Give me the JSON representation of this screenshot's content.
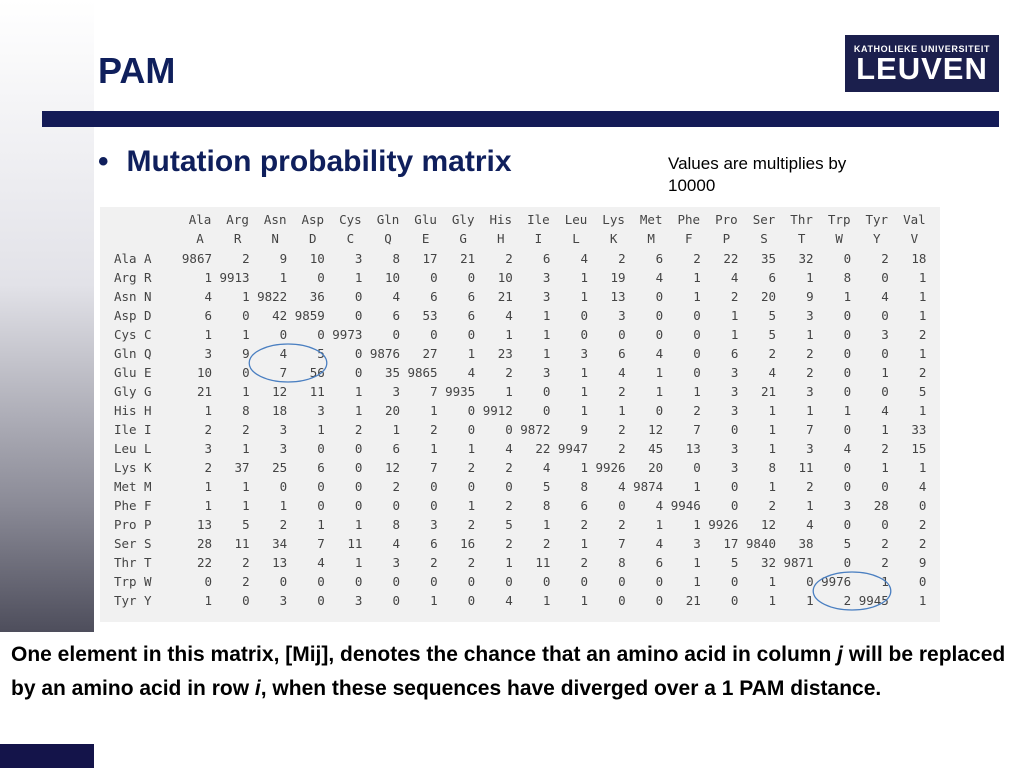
{
  "slide": {
    "title": "PAM",
    "logo_top": "KATHOLIEKE UNIVERSITEIT",
    "logo_main": "LEUVEN",
    "bullet": "Mutation probability matrix",
    "note": "Values are multiplies by 10000",
    "caption": {
      "part1": "One element in this matrix, [Mij], denotes the chance that an amino acid in column ",
      "j": "j",
      "part2": " will be replaced by an amino acid in row ",
      "i": "i",
      "part3": ", when these sequences have diverged over a 1 PAM distance."
    }
  },
  "matrix": {
    "col_names": [
      "Ala",
      "Arg",
      "Asn",
      "Asp",
      "Cys",
      "Gln",
      "Glu",
      "Gly",
      "His",
      "Ile",
      "Leu",
      "Lys",
      "Met",
      "Phe",
      "Pro",
      "Ser",
      "Thr",
      "Trp",
      "Tyr",
      "Val"
    ],
    "col_letters": [
      "A",
      "R",
      "N",
      "D",
      "C",
      "Q",
      "E",
      "G",
      "H",
      "I",
      "L",
      "K",
      "M",
      "F",
      "P",
      "S",
      "T",
      "W",
      "Y",
      "V"
    ],
    "row_names": [
      "Ala",
      "Arg",
      "Asn",
      "Asp",
      "Cys",
      "Gln",
      "Glu",
      "Gly",
      "His",
      "Ile",
      "Leu",
      "Lys",
      "Met",
      "Phe",
      "Pro",
      "Ser",
      "Thr",
      "Trp",
      "Tyr"
    ],
    "row_letters": [
      "A",
      "R",
      "N",
      "D",
      "C",
      "Q",
      "E",
      "G",
      "H",
      "I",
      "L",
      "K",
      "M",
      "F",
      "P",
      "S",
      "T",
      "W",
      "Y"
    ],
    "rows": [
      [
        9867,
        2,
        9,
        10,
        3,
        8,
        17,
        21,
        2,
        6,
        4,
        2,
        6,
        2,
        22,
        35,
        32,
        0,
        2,
        18
      ],
      [
        1,
        9913,
        1,
        0,
        1,
        10,
        0,
        0,
        10,
        3,
        1,
        19,
        4,
        1,
        4,
        6,
        1,
        8,
        0,
        1
      ],
      [
        4,
        1,
        9822,
        36,
        0,
        4,
        6,
        6,
        21,
        3,
        1,
        13,
        0,
        1,
        2,
        20,
        9,
        1,
        4,
        1
      ],
      [
        6,
        0,
        42,
        9859,
        0,
        6,
        53,
        6,
        4,
        1,
        0,
        3,
        0,
        0,
        1,
        5,
        3,
        0,
        0,
        1
      ],
      [
        1,
        1,
        0,
        0,
        9973,
        0,
        0,
        0,
        1,
        1,
        0,
        0,
        0,
        0,
        1,
        5,
        1,
        0,
        3,
        2
      ],
      [
        3,
        9,
        4,
        5,
        0,
        9876,
        27,
        1,
        23,
        1,
        3,
        6,
        4,
        0,
        6,
        2,
        2,
        0,
        0,
        1
      ],
      [
        10,
        0,
        7,
        56,
        0,
        35,
        9865,
        4,
        2,
        3,
        1,
        4,
        1,
        0,
        3,
        4,
        2,
        0,
        1,
        2
      ],
      [
        21,
        1,
        12,
        11,
        1,
        3,
        7,
        9935,
        1,
        0,
        1,
        2,
        1,
        1,
        3,
        21,
        3,
        0,
        0,
        5
      ],
      [
        1,
        8,
        18,
        3,
        1,
        20,
        1,
        0,
        9912,
        0,
        1,
        1,
        0,
        2,
        3,
        1,
        1,
        1,
        4,
        1
      ],
      [
        2,
        2,
        3,
        1,
        2,
        1,
        2,
        0,
        0,
        9872,
        9,
        2,
        12,
        7,
        0,
        1,
        7,
        0,
        1,
        33
      ],
      [
        3,
        1,
        3,
        0,
        0,
        6,
        1,
        1,
        4,
        22,
        9947,
        2,
        45,
        13,
        3,
        1,
        3,
        4,
        2,
        15
      ],
      [
        2,
        37,
        25,
        6,
        0,
        12,
        7,
        2,
        2,
        4,
        1,
        9926,
        20,
        0,
        3,
        8,
        11,
        0,
        1,
        1
      ],
      [
        1,
        1,
        0,
        0,
        0,
        2,
        0,
        0,
        0,
        5,
        8,
        4,
        9874,
        1,
        0,
        1,
        2,
        0,
        0,
        4
      ],
      [
        1,
        1,
        1,
        0,
        0,
        0,
        0,
        1,
        2,
        8,
        6,
        0,
        4,
        9946,
        0,
        2,
        1,
        3,
        28,
        0
      ],
      [
        13,
        5,
        2,
        1,
        1,
        8,
        3,
        2,
        5,
        1,
        2,
        2,
        1,
        1,
        9926,
        12,
        4,
        0,
        0,
        2
      ],
      [
        28,
        11,
        34,
        7,
        11,
        4,
        6,
        16,
        2,
        2,
        1,
        7,
        4,
        3,
        17,
        9840,
        38,
        5,
        2,
        2
      ],
      [
        22,
        2,
        13,
        4,
        1,
        3,
        2,
        2,
        1,
        11,
        2,
        8,
        6,
        1,
        5,
        32,
        9871,
        0,
        2,
        9
      ],
      [
        0,
        2,
        0,
        0,
        0,
        0,
        0,
        0,
        0,
        0,
        0,
        0,
        0,
        1,
        0,
        1,
        0,
        9976,
        1,
        0
      ],
      [
        1,
        0,
        3,
        0,
        3,
        0,
        1,
        0,
        4,
        1,
        1,
        0,
        0,
        21,
        0,
        1,
        1,
        2,
        9945,
        1
      ]
    ],
    "highlight_color": "#4a7fc1"
  }
}
